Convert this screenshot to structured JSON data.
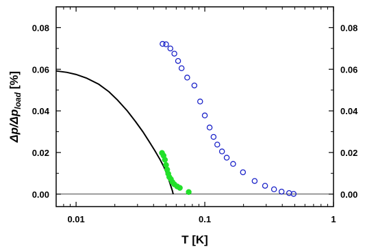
{
  "chart_data": {
    "type": "scatter",
    "title": "",
    "xlabel": "T [K]",
    "ylabel": {
      "main": "Δp/Δp",
      "subscript": "load",
      "unit": " [%]"
    },
    "xscale": "log",
    "xlim": [
      0.007,
      1
    ],
    "ylim": [
      -0.006,
      0.09
    ],
    "x_ticks": [
      {
        "value": 0.01,
        "label": "0.01"
      },
      {
        "value": 0.1,
        "label": "0.1"
      },
      {
        "value": 1,
        "label": "1"
      }
    ],
    "y_ticks": [
      {
        "value": 0.0,
        "label": "0.00"
      },
      {
        "value": 0.02,
        "label": "0.02"
      },
      {
        "value": 0.04,
        "label": "0.04"
      },
      {
        "value": 0.06,
        "label": "0.06"
      },
      {
        "value": 0.08,
        "label": "0.08"
      }
    ],
    "mirror_y_tick_labels_on_right": true,
    "grid": false,
    "reference_line_y": 0.0,
    "series": [
      {
        "kind": "line",
        "color": "#000000",
        "points": [
          [
            0.007,
            0.0592
          ],
          [
            0.0085,
            0.0585
          ],
          [
            0.01,
            0.0575
          ],
          [
            0.012,
            0.0558
          ],
          [
            0.015,
            0.0528
          ],
          [
            0.018,
            0.0492
          ],
          [
            0.021,
            0.0452
          ],
          [
            0.025,
            0.04
          ],
          [
            0.029,
            0.0348
          ],
          [
            0.033,
            0.03
          ],
          [
            0.037,
            0.0252
          ],
          [
            0.041,
            0.0208
          ],
          [
            0.045,
            0.0165
          ],
          [
            0.048,
            0.0132
          ],
          [
            0.05,
            0.0106
          ],
          [
            0.052,
            0.0077
          ],
          [
            0.054,
            0.0046
          ],
          [
            0.056,
            0.0016
          ],
          [
            0.0568,
            0.0
          ]
        ]
      },
      {
        "kind": "filled-circles",
        "color": "#22e02a",
        "points": [
          [
            0.0465,
            0.0198
          ],
          [
            0.0478,
            0.0185
          ],
          [
            0.049,
            0.0165
          ],
          [
            0.05,
            0.014
          ],
          [
            0.051,
            0.0118
          ],
          [
            0.052,
            0.0098
          ],
          [
            0.053,
            0.0082
          ],
          [
            0.0545,
            0.0072
          ],
          [
            0.056,
            0.0058
          ],
          [
            0.058,
            0.0047
          ],
          [
            0.061,
            0.0037
          ],
          [
            0.064,
            0.003
          ],
          [
            0.075,
            0.001
          ]
        ]
      },
      {
        "kind": "open-circles",
        "color": "#1a22c8",
        "points": [
          [
            0.047,
            0.0722
          ],
          [
            0.05,
            0.072
          ],
          [
            0.054,
            0.07
          ],
          [
            0.058,
            0.0675
          ],
          [
            0.062,
            0.064
          ],
          [
            0.066,
            0.0605
          ],
          [
            0.073,
            0.056
          ],
          [
            0.083,
            0.0522
          ],
          [
            0.092,
            0.0445
          ],
          [
            0.1,
            0.0378
          ],
          [
            0.109,
            0.032
          ],
          [
            0.117,
            0.0275
          ],
          [
            0.125,
            0.0238
          ],
          [
            0.136,
            0.0205
          ],
          [
            0.148,
            0.0175
          ],
          [
            0.166,
            0.0145
          ],
          [
            0.198,
            0.0105
          ],
          [
            0.244,
            0.0063
          ],
          [
            0.294,
            0.004
          ],
          [
            0.345,
            0.0023
          ],
          [
            0.395,
            0.0012
          ],
          [
            0.452,
            0.0005
          ],
          [
            0.49,
            0.0001
          ]
        ]
      }
    ]
  }
}
